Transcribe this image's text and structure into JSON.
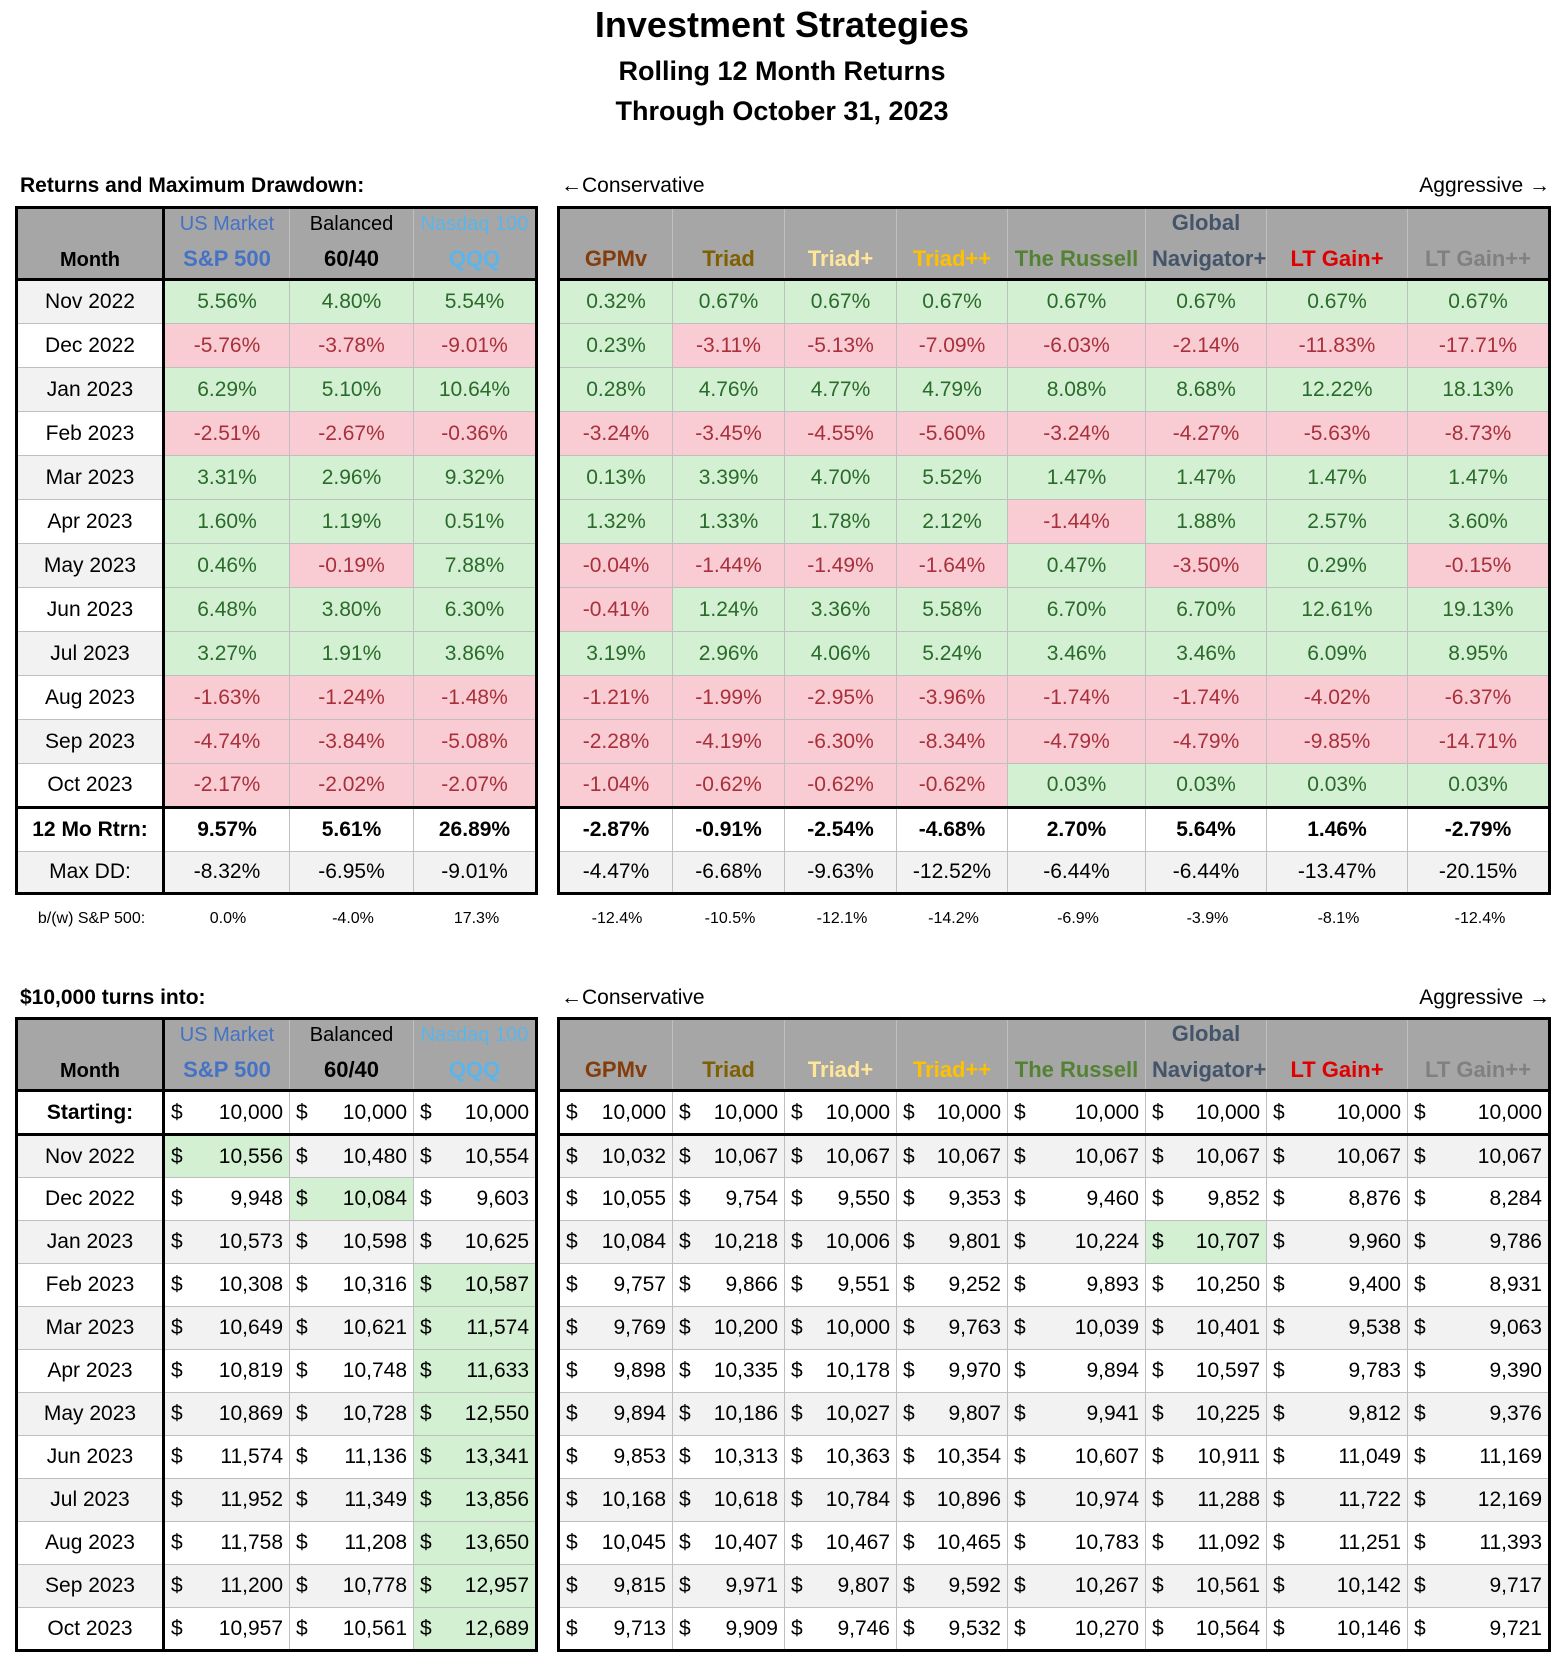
{
  "header": {
    "title": "Investment Strategies",
    "subtitle": "Rolling 12 Month Returns",
    "date": "Through October 31, 2023"
  },
  "labels": {
    "month": "Month",
    "conservative": "←Conservative",
    "aggressive": "Aggressive →"
  },
  "columns": [
    {
      "top": "US Market",
      "name": "S&P 500",
      "color": "#4472c4"
    },
    {
      "top": "Balanced",
      "name": "60/40",
      "color": "#000000"
    },
    {
      "top": "Nasdaq 100",
      "name": "QQQ",
      "color": "#5bb5ea"
    },
    {
      "name": "GPMv",
      "color": "#843c0c"
    },
    {
      "name": "Triad",
      "color": "#7f6000"
    },
    {
      "name": "Triad+",
      "color": "#ffe699"
    },
    {
      "name": "Triad++",
      "color": "#ffc000"
    },
    {
      "name": "The Russell",
      "color": "#548235"
    },
    {
      "top": "Global",
      "name": "Navigator+",
      "color": "#44546a"
    },
    {
      "name": "LT Gain+",
      "color": "#e00000"
    },
    {
      "name": "LT Gain++",
      "color": "#808080"
    }
  ],
  "returns": {
    "caption": "Returns and Maximum Drawdown:",
    "rows": [
      {
        "label": "Nov 2022",
        "values": [
          "5.56%",
          "4.80%",
          "5.54%",
          "0.32%",
          "0.67%",
          "0.67%",
          "0.67%",
          "0.67%",
          "0.67%",
          "0.67%",
          "0.67%"
        ]
      },
      {
        "label": "Dec 2022",
        "values": [
          "-5.76%",
          "-3.78%",
          "-9.01%",
          "0.23%",
          "-3.11%",
          "-5.13%",
          "-7.09%",
          "-6.03%",
          "-2.14%",
          "-11.83%",
          "-17.71%"
        ]
      },
      {
        "label": "Jan 2023",
        "values": [
          "6.29%",
          "5.10%",
          "10.64%",
          "0.28%",
          "4.76%",
          "4.77%",
          "4.79%",
          "8.08%",
          "8.68%",
          "12.22%",
          "18.13%"
        ]
      },
      {
        "label": "Feb 2023",
        "values": [
          "-2.51%",
          "-2.67%",
          "-0.36%",
          "-3.24%",
          "-3.45%",
          "-4.55%",
          "-5.60%",
          "-3.24%",
          "-4.27%",
          "-5.63%",
          "-8.73%"
        ]
      },
      {
        "label": "Mar 2023",
        "values": [
          "3.31%",
          "2.96%",
          "9.32%",
          "0.13%",
          "3.39%",
          "4.70%",
          "5.52%",
          "1.47%",
          "1.47%",
          "1.47%",
          "1.47%"
        ]
      },
      {
        "label": "Apr 2023",
        "values": [
          "1.60%",
          "1.19%",
          "0.51%",
          "1.32%",
          "1.33%",
          "1.78%",
          "2.12%",
          "-1.44%",
          "1.88%",
          "2.57%",
          "3.60%"
        ]
      },
      {
        "label": "May 2023",
        "values": [
          "0.46%",
          "-0.19%",
          "7.88%",
          "-0.04%",
          "-1.44%",
          "-1.49%",
          "-1.64%",
          "0.47%",
          "-3.50%",
          "0.29%",
          "-0.15%"
        ]
      },
      {
        "label": "Jun 2023",
        "values": [
          "6.48%",
          "3.80%",
          "6.30%",
          "-0.41%",
          "1.24%",
          "3.36%",
          "5.58%",
          "6.70%",
          "6.70%",
          "12.61%",
          "19.13%"
        ]
      },
      {
        "label": "Jul 2023",
        "values": [
          "3.27%",
          "1.91%",
          "3.86%",
          "3.19%",
          "2.96%",
          "4.06%",
          "5.24%",
          "3.46%",
          "3.46%",
          "6.09%",
          "8.95%"
        ]
      },
      {
        "label": "Aug 2023",
        "values": [
          "-1.63%",
          "-1.24%",
          "-1.48%",
          "-1.21%",
          "-1.99%",
          "-2.95%",
          "-3.96%",
          "-1.74%",
          "-1.74%",
          "-4.02%",
          "-6.37%"
        ]
      },
      {
        "label": "Sep 2023",
        "values": [
          "-4.74%",
          "-3.84%",
          "-5.08%",
          "-2.28%",
          "-4.19%",
          "-6.30%",
          "-8.34%",
          "-4.79%",
          "-4.79%",
          "-9.85%",
          "-14.71%"
        ]
      },
      {
        "label": "Oct 2023",
        "values": [
          "-2.17%",
          "-2.02%",
          "-2.07%",
          "-1.04%",
          "-0.62%",
          "-0.62%",
          "-0.62%",
          "0.03%",
          "0.03%",
          "0.03%",
          "0.03%"
        ]
      }
    ],
    "total": {
      "label": "12 Mo Rtrn:",
      "values": [
        "9.57%",
        "5.61%",
        "26.89%",
        "-2.87%",
        "-0.91%",
        "-2.54%",
        "-4.68%",
        "2.70%",
        "5.64%",
        "1.46%",
        "-2.79%"
      ]
    },
    "max_dd": {
      "label": "Max DD:",
      "values": [
        "-8.32%",
        "-6.95%",
        "-9.01%",
        "-4.47%",
        "-6.68%",
        "-9.63%",
        "-12.52%",
        "-6.44%",
        "-6.44%",
        "-13.47%",
        "-20.15%"
      ]
    },
    "comparison": {
      "label": "b/(w) S&P 500:",
      "values": [
        "0.0%",
        "-4.0%",
        "17.3%",
        "-12.4%",
        "-10.5%",
        "-12.1%",
        "-14.2%",
        "-6.9%",
        "-3.9%",
        "-8.1%",
        "-12.4%"
      ]
    }
  },
  "growth": {
    "caption": "$10,000 turns into:",
    "currency": "$",
    "start": {
      "label": "Starting:",
      "values": [
        "10,000",
        "10,000",
        "10,000",
        "10,000",
        "10,000",
        "10,000",
        "10,000",
        "10,000",
        "10,000",
        "10,000",
        "10,000"
      ]
    },
    "rows": [
      {
        "label": "Nov 2022",
        "highlight": 0,
        "values": [
          "10,556",
          "10,480",
          "10,554",
          "10,032",
          "10,067",
          "10,067",
          "10,067",
          "10,067",
          "10,067",
          "10,067",
          "10,067"
        ]
      },
      {
        "label": "Dec 2022",
        "highlight": 1,
        "values": [
          "9,948",
          "10,084",
          "9,603",
          "10,055",
          "9,754",
          "9,550",
          "9,353",
          "9,460",
          "9,852",
          "8,876",
          "8,284"
        ]
      },
      {
        "label": "Jan 2023",
        "highlight": 8,
        "values": [
          "10,573",
          "10,598",
          "10,625",
          "10,084",
          "10,218",
          "10,006",
          "9,801",
          "10,224",
          "10,707",
          "9,960",
          "9,786"
        ]
      },
      {
        "label": "Feb 2023",
        "highlight": 2,
        "values": [
          "10,308",
          "10,316",
          "10,587",
          "9,757",
          "9,866",
          "9,551",
          "9,252",
          "9,893",
          "10,250",
          "9,400",
          "8,931"
        ]
      },
      {
        "label": "Mar 2023",
        "highlight": 2,
        "values": [
          "10,649",
          "10,621",
          "11,574",
          "9,769",
          "10,200",
          "10,000",
          "9,763",
          "10,039",
          "10,401",
          "9,538",
          "9,063"
        ]
      },
      {
        "label": "Apr 2023",
        "highlight": 2,
        "values": [
          "10,819",
          "10,748",
          "11,633",
          "9,898",
          "10,335",
          "10,178",
          "9,970",
          "9,894",
          "10,597",
          "9,783",
          "9,390"
        ]
      },
      {
        "label": "May 2023",
        "highlight": 2,
        "values": [
          "10,869",
          "10,728",
          "12,550",
          "9,894",
          "10,186",
          "10,027",
          "9,807",
          "9,941",
          "10,225",
          "9,812",
          "9,376"
        ]
      },
      {
        "label": "Jun 2023",
        "highlight": 2,
        "values": [
          "11,574",
          "11,136",
          "13,341",
          "9,853",
          "10,313",
          "10,363",
          "10,354",
          "10,607",
          "10,911",
          "11,049",
          "11,169"
        ]
      },
      {
        "label": "Jul 2023",
        "highlight": 2,
        "values": [
          "11,952",
          "11,349",
          "13,856",
          "10,168",
          "10,618",
          "10,784",
          "10,896",
          "10,974",
          "11,288",
          "11,722",
          "12,169"
        ]
      },
      {
        "label": "Aug 2023",
        "highlight": 2,
        "values": [
          "11,758",
          "11,208",
          "13,650",
          "10,045",
          "10,407",
          "10,467",
          "10,465",
          "10,783",
          "11,092",
          "11,251",
          "11,393"
        ]
      },
      {
        "label": "Sep 2023",
        "highlight": 2,
        "values": [
          "11,200",
          "10,778",
          "12,957",
          "9,815",
          "9,971",
          "9,807",
          "9,592",
          "10,267",
          "10,561",
          "10,142",
          "9,717"
        ]
      },
      {
        "label": "Oct 2023",
        "highlight": 2,
        "values": [
          "10,957",
          "10,561",
          "12,689",
          "9,713",
          "9,909",
          "9,746",
          "9,532",
          "10,270",
          "10,564",
          "10,146",
          "9,721"
        ]
      }
    ]
  }
}
